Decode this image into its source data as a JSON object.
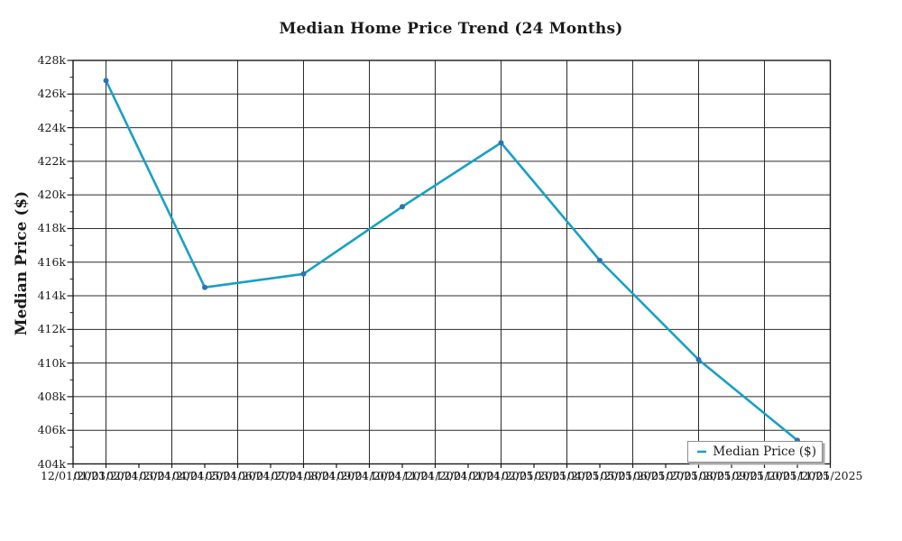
{
  "chart_data": {
    "type": "line",
    "title": "Median Home Price Trend (24 Months)",
    "ylabel": "Median Price ($)",
    "xlabel": "",
    "ylim": [
      404000,
      428000
    ],
    "y_tick_step": 2000,
    "y_minor_step": 1000,
    "y_tick_labels": [
      "428k",
      "426k",
      "424k",
      "422k",
      "420k",
      "418k",
      "416k",
      "414k",
      "412k",
      "410k",
      "408k",
      "406k",
      "404k"
    ],
    "x_tick_labels": [
      "12/01/2023",
      "01/01/2024",
      "02/01/2024",
      "03/01/2024",
      "04/01/2024",
      "05/01/2024",
      "06/01/2024",
      "07/01/2024",
      "08/01/2024",
      "09/01/2024",
      "10/01/2024",
      "11/01/2024",
      "12/01/2024",
      "01/01/2025",
      "02/01/2025",
      "03/01/2025",
      "04/01/2025",
      "05/01/2025",
      "06/01/2025",
      "07/01/2025",
      "08/01/2025",
      "09/01/2025",
      "10/01/2025",
      "11/01/2025"
    ],
    "x_gridlines_at_odd_ticks": true,
    "grid": true,
    "legend_position": "lower right",
    "series": [
      {
        "name": "Median Price ($)",
        "points": [
          {
            "date": "01/01/2024",
            "value": 426800
          },
          {
            "date": "04/01/2024",
            "value": 414500
          },
          {
            "date": "07/01/2024",
            "value": 415300
          },
          {
            "date": "10/01/2024",
            "value": 419300
          },
          {
            "date": "01/01/2025",
            "value": 423100
          },
          {
            "date": "04/01/2025",
            "value": 416100
          },
          {
            "date": "07/01/2025",
            "value": 410200
          },
          {
            "date": "10/01/2025",
            "value": 405400
          }
        ]
      }
    ],
    "colors": {
      "line": "#18a0c4",
      "marker": "#2d72b2",
      "grid": "#2b2b2b",
      "axis": "#1a1a1a",
      "text": "#1a1a1a",
      "legend_border": "#8f8f8f",
      "background": "#ffffff"
    }
  }
}
